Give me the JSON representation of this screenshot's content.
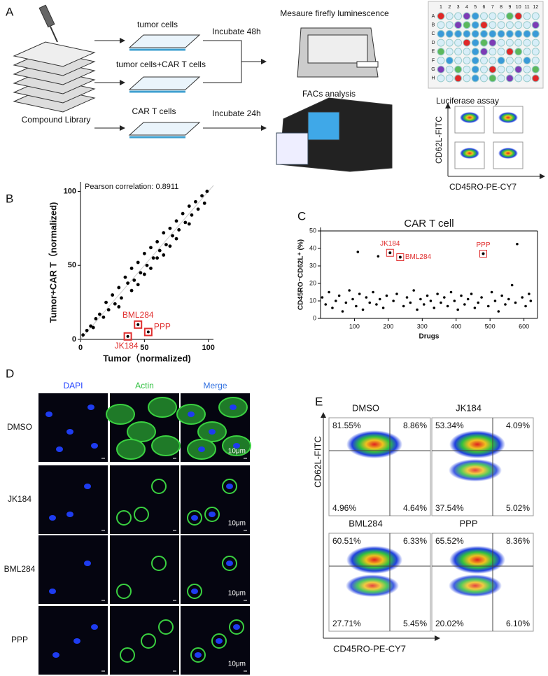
{
  "panel_labels": [
    "A",
    "B",
    "C",
    "D",
    "E"
  ],
  "panel_a": {
    "steps": [
      "tumor cells",
      "tumor cells+CAR T cells",
      "CAR T cells"
    ],
    "library": "Compound Library",
    "incubations": [
      "Incubate 48h",
      "Incubate 24h"
    ],
    "readouts": [
      "Mesaure firefly luminescence",
      "FACs analysis"
    ],
    "plate": {
      "columns": [
        "1",
        "2",
        "3",
        "4",
        "5",
        "6",
        "7",
        "8",
        "9",
        "10",
        "11",
        "12"
      ],
      "rows": [
        "A",
        "B",
        "C",
        "D",
        "E",
        "F",
        "G",
        "H"
      ],
      "caption": "Luciferase assay"
    },
    "flow_axes": {
      "y": "CD62L-FITC",
      "x": "CD45RO-PE-CY7"
    }
  },
  "chart_data": [
    {
      "type": "scatter",
      "x_label": "Tumor（normalized)",
      "y_label": "Tumor+CAR T（normalized)",
      "note": "Pearson correlation: 0.8911",
      "xlim": [
        0,
        104
      ],
      "ylim": [
        0,
        104
      ],
      "xticks": [
        0,
        50,
        100
      ],
      "yticks": [
        0,
        50,
        100
      ],
      "color": "#000000",
      "x": [
        2,
        5,
        8,
        10,
        12,
        15,
        18,
        20,
        22,
        25,
        27,
        30,
        32,
        35,
        37,
        40,
        42,
        45,
        47,
        50,
        52,
        55,
        57,
        60,
        62,
        65,
        67,
        70,
        72,
        75,
        77,
        80,
        82,
        85,
        87,
        90,
        92,
        95,
        97,
        99,
        30,
        45,
        55,
        65,
        75,
        85,
        50,
        60,
        70,
        40
      ],
      "values": [
        3,
        6,
        9,
        8,
        14,
        17,
        15,
        25,
        20,
        30,
        24,
        35,
        28,
        42,
        38,
        48,
        40,
        52,
        45,
        58,
        50,
        62,
        55,
        66,
        60,
        72,
        64,
        75,
        70,
        80,
        74,
        85,
        79,
        90,
        84,
        93,
        88,
        97,
        92,
        100,
        22,
        37,
        48,
        57,
        68,
        78,
        44,
        55,
        63,
        33
      ],
      "highlights": [
        {
          "label": "JK184",
          "x": 37,
          "y": 2
        },
        {
          "label": "BML284",
          "x": 45,
          "y": 10
        },
        {
          "label": "PPP",
          "x": 53,
          "y": 5
        }
      ],
      "highlight_color": "#e03030"
    },
    {
      "type": "scatter",
      "title": "CAR T cell",
      "x_label": "Drugs",
      "y_label": "CD45RO⁻CD62L⁺ (%)",
      "xlim": [
        0,
        640
      ],
      "ylim": [
        0,
        50
      ],
      "xticks": [
        100,
        200,
        300,
        400,
        500,
        600
      ],
      "yticks": [
        0,
        10,
        20,
        30,
        40,
        50
      ],
      "color": "#000000",
      "x": [
        5,
        15,
        25,
        35,
        45,
        55,
        65,
        75,
        85,
        95,
        105,
        115,
        125,
        135,
        145,
        155,
        165,
        175,
        185,
        195,
        215,
        225,
        245,
        255,
        265,
        275,
        285,
        295,
        305,
        315,
        325,
        335,
        345,
        355,
        365,
        375,
        385,
        395,
        405,
        415,
        425,
        435,
        445,
        455,
        465,
        475,
        495,
        505,
        515,
        525,
        535,
        545,
        555,
        565,
        575,
        595,
        605,
        615,
        620,
        110,
        170,
        580
      ],
      "values": [
        12,
        8,
        15,
        6,
        10,
        13,
        4,
        9,
        16,
        11,
        7,
        14,
        5,
        12,
        9,
        15,
        8,
        11,
        6,
        13,
        10,
        14,
        7,
        12,
        9,
        16,
        5,
        11,
        8,
        13,
        10,
        6,
        14,
        9,
        12,
        7,
        15,
        10,
        5,
        13,
        8,
        11,
        14,
        6,
        9,
        12,
        7,
        15,
        10,
        4,
        13,
        8,
        11,
        19,
        9,
        12,
        7,
        14,
        10,
        38,
        35.5,
        42.5
      ],
      "highlights": [
        {
          "label": "JK184",
          "x": 205,
          "y": 37.5
        },
        {
          "label": "BML284",
          "x": 235,
          "y": 35
        },
        {
          "label": "PPP",
          "x": 480,
          "y": 37
        }
      ],
      "highlight_color": "#e03030"
    }
  ],
  "panel_d": {
    "columns": [
      "DAPI",
      "Actin",
      "Merge"
    ],
    "rows": [
      "DMSO",
      "JK184",
      "BML284",
      "PPP"
    ],
    "scale_bar": "10μm"
  },
  "panel_e": {
    "y_axis": "CD62L-FITC",
    "x_axis": "CD45RO-PE-CY7",
    "plots": [
      {
        "title": "DMSO",
        "quadrants": [
          "81.55%",
          "8.86%",
          "4.96%",
          "4.64%"
        ]
      },
      {
        "title": "JK184",
        "quadrants": [
          "53.34%",
          "4.09%",
          "37.54%",
          "5.02%"
        ]
      },
      {
        "title": "BML284",
        "quadrants": [
          "60.51%",
          "6.33%",
          "27.71%",
          "5.45%"
        ]
      },
      {
        "title": "PPP",
        "quadrants": [
          "65.52%",
          "8.36%",
          "20.02%",
          "6.10%"
        ]
      }
    ]
  }
}
